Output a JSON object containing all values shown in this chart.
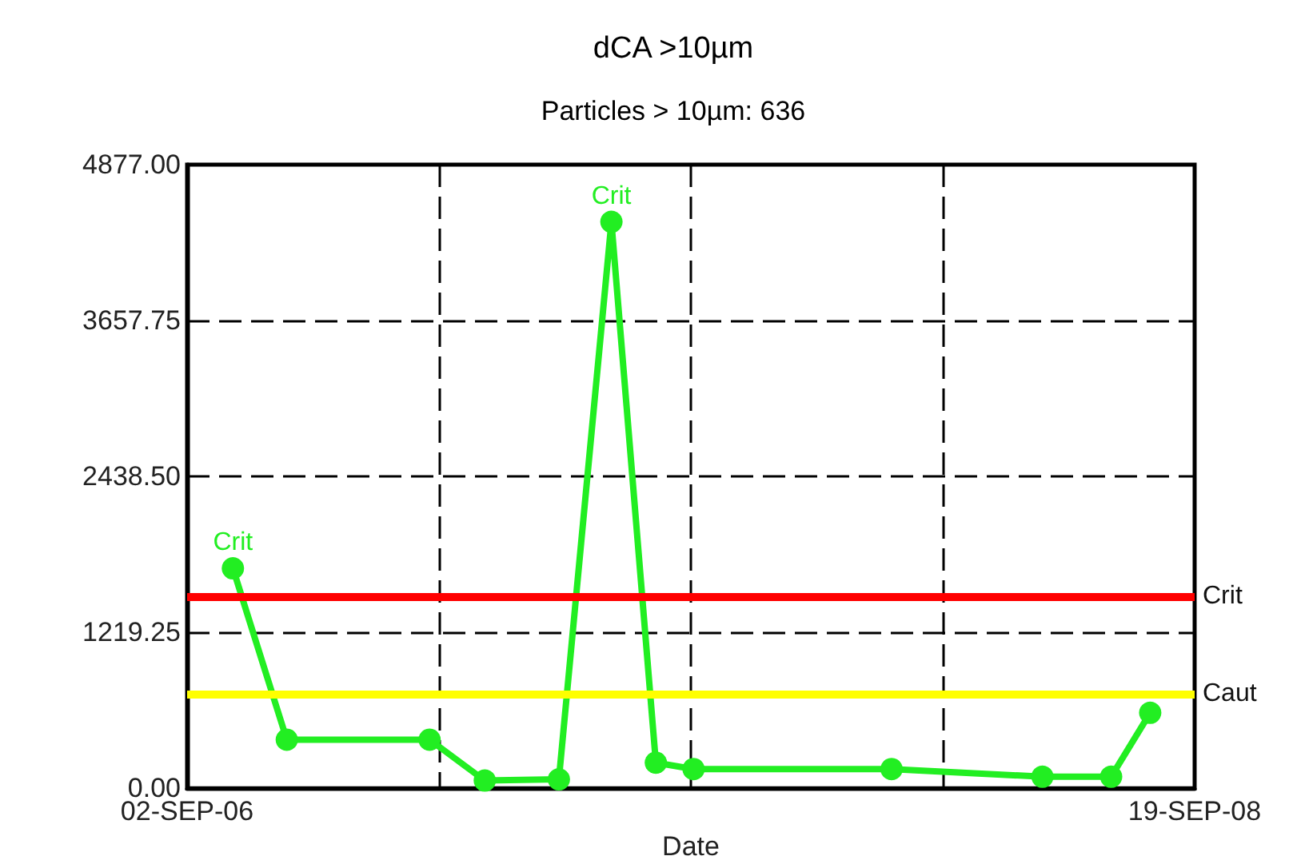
{
  "chart_data": {
    "type": "line",
    "title": "dCA >10µm",
    "subtitle": "Particles > 10µm: 636",
    "xlabel": "Date",
    "x": [
      "2006-10-06",
      "2006-11-15",
      "2007-03-01",
      "2007-04-11",
      "2007-06-05",
      "2007-07-14",
      "2007-08-16",
      "2007-09-13",
      "2008-02-07",
      "2008-05-29",
      "2008-07-19",
      "2008-08-17"
    ],
    "series": [
      {
        "color": "#22ee22",
        "values": [
          1720,
          380,
          380,
          60,
          70,
          4430,
          200,
          150,
          150,
          90,
          90,
          590
        ]
      }
    ],
    "xlim": [
      "2006-09-02",
      "2008-09-19"
    ],
    "xticks": [
      {
        "value": "2006-09-02",
        "label": "02-SEP-06"
      },
      {
        "value": "2007-03-08",
        "label": null
      },
      {
        "value": "2007-09-11",
        "label": null
      },
      {
        "value": "2008-03-16",
        "label": null
      },
      {
        "value": "2008-09-19",
        "label": "19-SEP-08"
      }
    ],
    "ylim": [
      0,
      4877
    ],
    "yticks": [
      {
        "value": 0,
        "label": "0.00"
      },
      {
        "value": 1219.25,
        "label": "1219.25"
      },
      {
        "value": 2438.5,
        "label": "2438.50"
      },
      {
        "value": 3657.75,
        "label": "3657.75"
      },
      {
        "value": 4877,
        "label": "4877.00"
      }
    ],
    "ref_lines": [
      {
        "axis": "y",
        "value": 1500,
        "label": "Crit",
        "color": "#ff0000"
      },
      {
        "axis": "y",
        "value": 740,
        "label": "Caut",
        "color": "#ffff00"
      }
    ],
    "annotations": [
      {
        "text": "Crit",
        "x": "2006-10-06",
        "y": 1720
      },
      {
        "text": "Crit",
        "x": "2007-07-14",
        "y": 4430
      }
    ],
    "grid": true,
    "marker": "circle",
    "line_style": "solid"
  }
}
